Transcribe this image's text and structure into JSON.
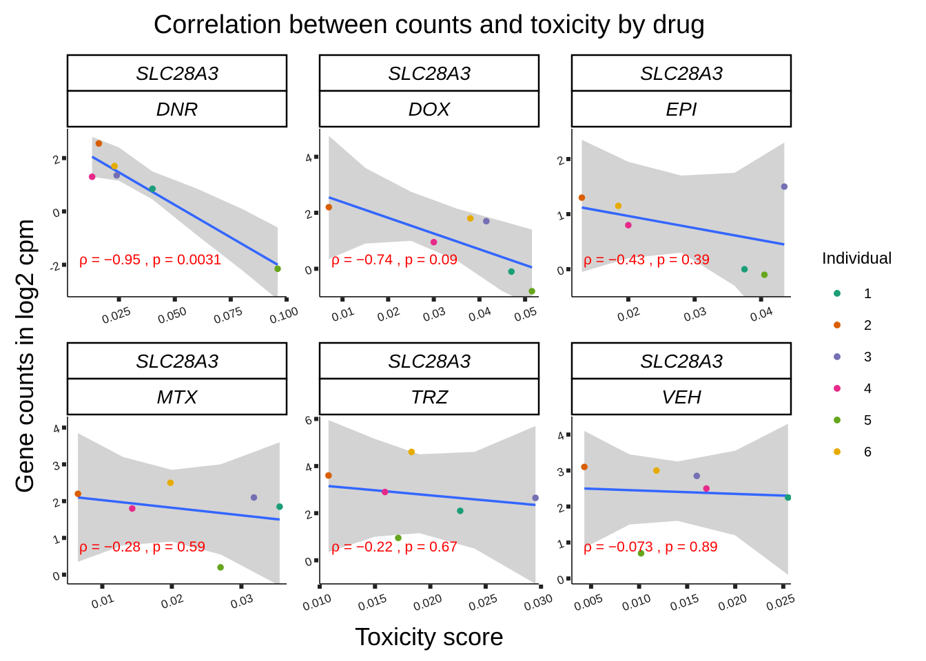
{
  "chart_data": {
    "type": "scatter",
    "title": "Correlation between counts and toxicity by drug",
    "xlabel": "Toxicity score",
    "ylabel": "Gene counts in log2 cpm",
    "legend": {
      "title": "Individual",
      "position": "right",
      "entries": [
        {
          "label": "1",
          "color": "#1B9E77"
        },
        {
          "label": "2",
          "color": "#D95F02"
        },
        {
          "label": "3",
          "color": "#7570B3"
        },
        {
          "label": "4",
          "color": "#E7298A"
        },
        {
          "label": "5",
          "color": "#66A61E"
        },
        {
          "label": "6",
          "color": "#E6AB02"
        }
      ]
    },
    "fit_line_color": "#3366FF",
    "ci_band_color": "#d3d3d3",
    "panels": [
      {
        "gene": "SLC28A3",
        "drug": "DNR",
        "xlim": [
          0.002,
          0.1
        ],
        "ylim": [
          -3.2,
          3.1
        ],
        "xticks": [
          0.025,
          0.05,
          0.075,
          0.1
        ],
        "xtick_labels": [
          "0.025",
          "0.050",
          "0.075",
          "0.100"
        ],
        "yticks": [
          -2,
          0,
          2
        ],
        "ytick_labels": [
          "-2",
          "0",
          "2"
        ],
        "points": [
          {
            "individual": "1",
            "x": 0.04,
            "y": 0.85
          },
          {
            "individual": "2",
            "x": 0.016,
            "y": 2.55
          },
          {
            "individual": "3",
            "x": 0.024,
            "y": 1.35
          },
          {
            "individual": "4",
            "x": 0.013,
            "y": 1.3
          },
          {
            "individual": "5",
            "x": 0.096,
            "y": -2.15
          },
          {
            "individual": "6",
            "x": 0.023,
            "y": 1.7
          }
        ],
        "fit": {
          "x": [
            0.013,
            0.096
          ],
          "y": [
            2.05,
            -2.0
          ]
        },
        "ci_upper": [
          [
            0.013,
            2.8
          ],
          [
            0.025,
            2.4
          ],
          [
            0.04,
            1.5
          ],
          [
            0.06,
            0.85
          ],
          [
            0.08,
            0.1
          ],
          [
            0.096,
            -0.6
          ]
        ],
        "ci_lower": [
          [
            0.013,
            1.3
          ],
          [
            0.025,
            1.15
          ],
          [
            0.04,
            0.45
          ],
          [
            0.06,
            -0.9
          ],
          [
            0.08,
            -2.2
          ],
          [
            0.096,
            -3.3
          ]
        ],
        "annotation": "ρ = −0.95 , p = 0.0031"
      },
      {
        "gene": "SLC28A3",
        "drug": "DOX",
        "xlim": [
          0.005,
          0.053
        ],
        "ylim": [
          -1.0,
          5.0
        ],
        "xticks": [
          0.01,
          0.02,
          0.03,
          0.04,
          0.05
        ],
        "xtick_labels": [
          "0.01",
          "0.02",
          "0.03",
          "0.04",
          "0.05"
        ],
        "yticks": [
          0,
          2,
          4
        ],
        "ytick_labels": [
          "0",
          "2",
          "4"
        ],
        "points": [
          {
            "individual": "1",
            "x": 0.047,
            "y": -0.1
          },
          {
            "individual": "2",
            "x": 0.007,
            "y": 2.2
          },
          {
            "individual": "3",
            "x": 0.0415,
            "y": 1.7
          },
          {
            "individual": "4",
            "x": 0.03,
            "y": 0.95
          },
          {
            "individual": "5",
            "x": 0.0515,
            "y": -0.8
          },
          {
            "individual": "6",
            "x": 0.038,
            "y": 1.8
          }
        ],
        "fit": {
          "x": [
            0.007,
            0.0515
          ],
          "y": [
            2.55,
            0.05
          ]
        },
        "ci_upper": [
          [
            0.007,
            4.75
          ],
          [
            0.015,
            3.6
          ],
          [
            0.025,
            2.75
          ],
          [
            0.035,
            2.15
          ],
          [
            0.045,
            1.7
          ],
          [
            0.0515,
            1.4
          ]
        ],
        "ci_lower": [
          [
            0.007,
            0.35
          ],
          [
            0.015,
            0.9
          ],
          [
            0.025,
            1.0
          ],
          [
            0.035,
            0.3
          ],
          [
            0.045,
            -0.8
          ],
          [
            0.0515,
            -1.3
          ]
        ],
        "annotation": "ρ = −0.74 , p = 0.09"
      },
      {
        "gene": "SLC28A3",
        "drug": "EPI",
        "xlim": [
          0.0115,
          0.0445
        ],
        "ylim": [
          -0.5,
          2.55
        ],
        "xticks": [
          0.02,
          0.03,
          0.04
        ],
        "xtick_labels": [
          "0.02",
          "0.03",
          "0.04"
        ],
        "yticks": [
          0,
          1,
          2
        ],
        "ytick_labels": [
          "0",
          "1",
          "2"
        ],
        "points": [
          {
            "individual": "1",
            "x": 0.0375,
            "y": 0.0
          },
          {
            "individual": "2",
            "x": 0.013,
            "y": 1.3
          },
          {
            "individual": "3",
            "x": 0.0435,
            "y": 1.5
          },
          {
            "individual": "4",
            "x": 0.02,
            "y": 0.8
          },
          {
            "individual": "5",
            "x": 0.0405,
            "y": -0.1
          },
          {
            "individual": "6",
            "x": 0.0185,
            "y": 1.15
          }
        ],
        "fit": {
          "x": [
            0.013,
            0.0435
          ],
          "y": [
            1.12,
            0.45
          ]
        },
        "ci_upper": [
          [
            0.013,
            2.35
          ],
          [
            0.02,
            1.95
          ],
          [
            0.028,
            1.7
          ],
          [
            0.036,
            1.75
          ],
          [
            0.0435,
            2.3
          ]
        ],
        "ci_lower": [
          [
            0.013,
            -0.05
          ],
          [
            0.02,
            0.2
          ],
          [
            0.028,
            0.3
          ],
          [
            0.036,
            -0.3
          ],
          [
            0.0435,
            -1.3
          ]
        ],
        "annotation": "ρ = −0.43 , p = 0.39"
      },
      {
        "gene": "SLC28A3",
        "drug": "MTX",
        "xlim": [
          0.005,
          0.0365
        ],
        "ylim": [
          -0.25,
          4.3
        ],
        "xticks": [
          0.01,
          0.02,
          0.03
        ],
        "xtick_labels": [
          "0.01",
          "0.02",
          "0.03"
        ],
        "yticks": [
          0,
          1,
          2,
          3,
          4
        ],
        "ytick_labels": [
          "0",
          "1",
          "2",
          "3",
          "4"
        ],
        "points": [
          {
            "individual": "1",
            "x": 0.0355,
            "y": 1.85
          },
          {
            "individual": "2",
            "x": 0.0065,
            "y": 2.2
          },
          {
            "individual": "3",
            "x": 0.0318,
            "y": 2.1
          },
          {
            "individual": "4",
            "x": 0.0143,
            "y": 1.8
          },
          {
            "individual": "5",
            "x": 0.027,
            "y": 0.2
          },
          {
            "individual": "6",
            "x": 0.0198,
            "y": 2.5
          }
        ],
        "fit": {
          "x": [
            0.0065,
            0.0355
          ],
          "y": [
            2.1,
            1.5
          ]
        },
        "ci_upper": [
          [
            0.0065,
            3.85
          ],
          [
            0.013,
            3.2
          ],
          [
            0.02,
            2.85
          ],
          [
            0.027,
            3.0
          ],
          [
            0.0355,
            3.6
          ]
        ],
        "ci_lower": [
          [
            0.0065,
            0.35
          ],
          [
            0.013,
            0.8
          ],
          [
            0.02,
            0.9
          ],
          [
            0.027,
            0.55
          ],
          [
            0.0355,
            -0.3
          ]
        ],
        "annotation": "ρ = −0.28 , p = 0.59"
      },
      {
        "gene": "SLC28A3",
        "drug": "TRZ",
        "xlim": [
          0.01,
          0.0298
        ],
        "ylim": [
          -1.0,
          6.1
        ],
        "xticks": [
          0.01,
          0.015,
          0.02,
          0.025,
          0.03
        ],
        "xtick_labels": [
          "0.010",
          "0.015",
          "0.020",
          "0.025",
          "0.030"
        ],
        "yticks": [
          0,
          2,
          4,
          6
        ],
        "ytick_labels": [
          "0",
          "2",
          "4",
          "6"
        ],
        "points": [
          {
            "individual": "1",
            "x": 0.0227,
            "y": 2.1
          },
          {
            "individual": "2",
            "x": 0.0108,
            "y": 3.6
          },
          {
            "individual": "3",
            "x": 0.0295,
            "y": 2.65
          },
          {
            "individual": "4",
            "x": 0.0159,
            "y": 2.9
          },
          {
            "individual": "5",
            "x": 0.0171,
            "y": 0.95
          },
          {
            "individual": "6",
            "x": 0.0183,
            "y": 4.6
          }
        ],
        "fit": {
          "x": [
            0.0108,
            0.0295
          ],
          "y": [
            3.15,
            2.35
          ]
        },
        "ci_upper": [
          [
            0.0108,
            5.95
          ],
          [
            0.015,
            5.15
          ],
          [
            0.019,
            4.5
          ],
          [
            0.024,
            4.6
          ],
          [
            0.0295,
            5.7
          ]
        ],
        "ci_lower": [
          [
            0.0108,
            0.35
          ],
          [
            0.015,
            1.0
          ],
          [
            0.019,
            1.15
          ],
          [
            0.024,
            0.5
          ],
          [
            0.0295,
            -1.0
          ]
        ],
        "annotation": "ρ = −0.22 , p = 0.67"
      },
      {
        "gene": "SLC28A3",
        "drug": "VEH",
        "xlim": [
          0.003,
          0.0258
        ],
        "ylim": [
          -0.15,
          4.5
        ],
        "xticks": [
          0.005,
          0.01,
          0.015,
          0.02,
          0.025
        ],
        "xtick_labels": [
          "0.005",
          "0.010",
          "0.015",
          "0.020",
          "0.025"
        ],
        "yticks": [
          0,
          1,
          2,
          3,
          4
        ],
        "ytick_labels": [
          "0",
          "1",
          "2",
          "3",
          "4"
        ],
        "points": [
          {
            "individual": "1",
            "x": 0.0255,
            "y": 2.25
          },
          {
            "individual": "2",
            "x": 0.0043,
            "y": 3.1
          },
          {
            "individual": "3",
            "x": 0.016,
            "y": 2.85
          },
          {
            "individual": "4",
            "x": 0.017,
            "y": 2.5
          },
          {
            "individual": "5",
            "x": 0.0102,
            "y": 0.7
          },
          {
            "individual": "6",
            "x": 0.0118,
            "y": 3.0
          }
        ],
        "fit": {
          "x": [
            0.0043,
            0.0255
          ],
          "y": [
            2.5,
            2.3
          ]
        },
        "ci_upper": [
          [
            0.0043,
            4.1
          ],
          [
            0.009,
            3.45
          ],
          [
            0.014,
            3.25
          ],
          [
            0.02,
            3.55
          ],
          [
            0.0255,
            4.3
          ]
        ],
        "ci_lower": [
          [
            0.0043,
            0.85
          ],
          [
            0.009,
            1.5
          ],
          [
            0.014,
            1.6
          ],
          [
            0.02,
            1.2
          ],
          [
            0.0255,
            0.1
          ]
        ],
        "annotation": "ρ = −0.073 , p = 0.89"
      }
    ]
  }
}
